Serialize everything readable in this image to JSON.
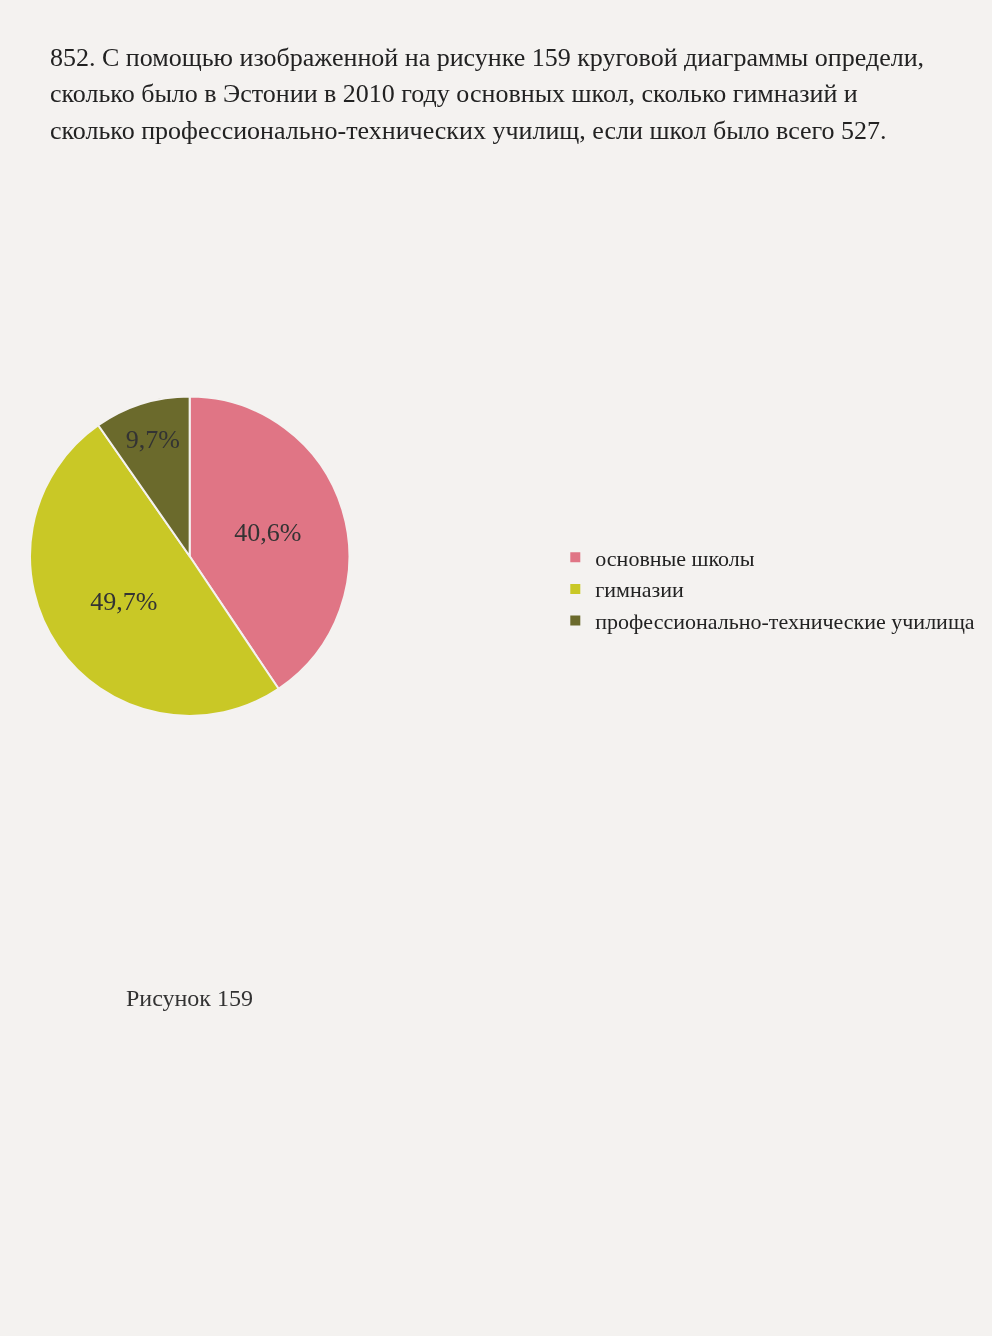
{
  "chart_data": {
    "type": "pie",
    "title": "852. С помощью изображенной на рисунке 159 круговой диаграммы определи, сколько было в Эстонии в 2010 году основных школ, сколько гимназий и сколько профессионально-технических училищ, если школ было всего 527.",
    "categories": [
      "основные школы",
      "гимназии",
      "профессионально-технические училища"
    ],
    "values": [
      40.6,
      49.7,
      9.7
    ],
    "value_labels": [
      "40,6%",
      "49,7%",
      "9,7%"
    ],
    "colors": [
      "#e07585",
      "#c9c826",
      "#6b6a2c"
    ],
    "legend": "right",
    "annotations": [
      "Рисунок 159"
    ]
  }
}
